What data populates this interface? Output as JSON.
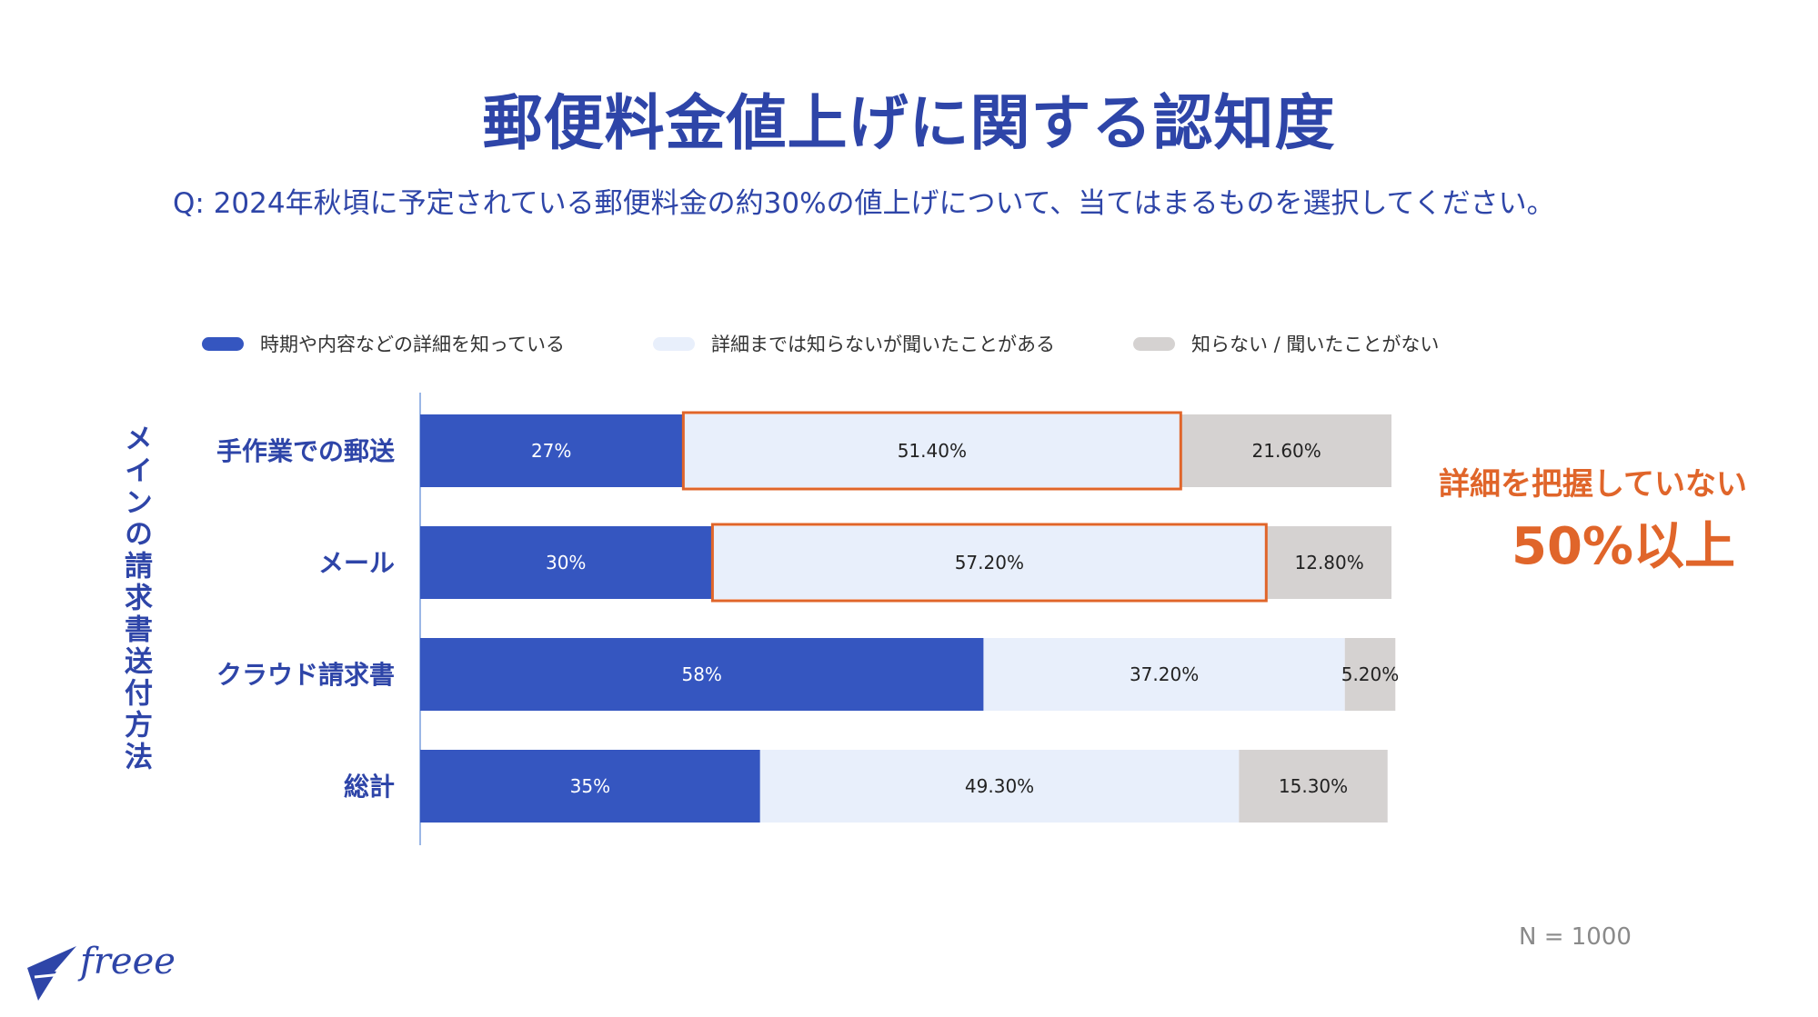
{
  "title": "郵便料金値上げに関する認知度",
  "subtitle": "Q: 2024年秋頃に予定されている郵便料金の約30%の値上げについて、当てはまるものを選択してください。",
  "y_axis_title": "メインの請求書送付方法",
  "annotation": {
    "line1": "詳細を把握していない",
    "line2": "50%以上"
  },
  "sample_size": "N = 1000",
  "logo": {
    "text": "freee",
    "icon": "bird-icon"
  },
  "colors": {
    "accent": "#2e45a8",
    "highlight": "#e0652a"
  },
  "chart_data": {
    "type": "bar",
    "orientation": "horizontal",
    "stacked": true,
    "categories": [
      "手作業での郵送",
      "メール",
      "クラウド請求書",
      "総計"
    ],
    "series": [
      {
        "name": "時期や内容などの詳細を知っている",
        "color": "#3556c0",
        "values": [
          27,
          30,
          58,
          35
        ],
        "labels": [
          "27%",
          "30%",
          "58%",
          "35%"
        ]
      },
      {
        "name": "詳細までは知らないが聞いたことがある",
        "color": "#e8effb",
        "values": [
          51.4,
          57.2,
          37.2,
          49.3
        ],
        "labels": [
          "51.40%",
          "57.20%",
          "37.20%",
          "49.30%"
        ]
      },
      {
        "name": "知らない / 聞いたことがない",
        "color": "#d5d2d1",
        "values": [
          21.6,
          12.8,
          5.2,
          15.3
        ],
        "labels": [
          "21.60%",
          "12.80%",
          "5.20%",
          "15.30%"
        ]
      }
    ],
    "highlighted": [
      {
        "category": "手作業での郵送",
        "series": "詳細までは知らないが聞いたことがある"
      },
      {
        "category": "メール",
        "series": "詳細までは知らないが聞いたことがある"
      }
    ],
    "xlim": [
      0,
      100
    ],
    "legend_position": "top"
  }
}
